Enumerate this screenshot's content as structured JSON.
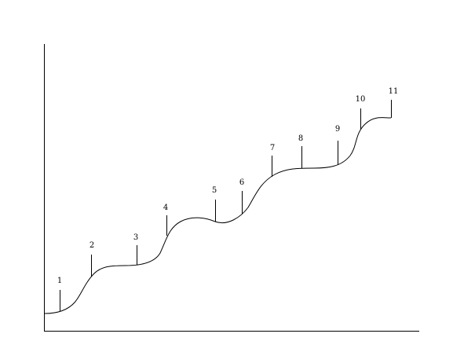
{
  "diagram": {
    "markers": [
      {
        "label": "1"
      },
      {
        "label": "2"
      },
      {
        "label": "3"
      },
      {
        "label": "4"
      },
      {
        "label": "5"
      },
      {
        "label": "6"
      },
      {
        "label": "7"
      },
      {
        "label": "8"
      },
      {
        "label": "9"
      },
      {
        "label": "10"
      },
      {
        "label": "11"
      }
    ],
    "colors": {
      "line": "#000000",
      "background": "#ffffff"
    }
  }
}
